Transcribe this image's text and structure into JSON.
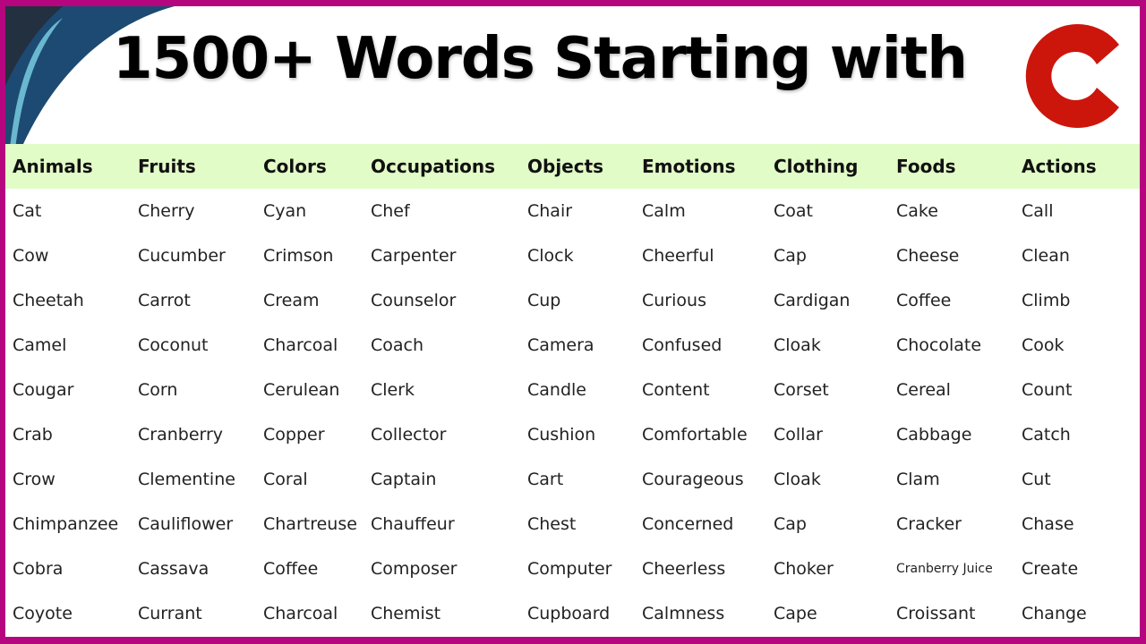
{
  "title": "1500+ Words Starting with",
  "letter": "C",
  "colors": {
    "border": "#b5067f",
    "header_bg": "#e2fcc7",
    "letter": "#cc160c"
  },
  "columns": [
    {
      "header": "Animals",
      "words": [
        "Cat",
        "Cow",
        "Cheetah",
        "Camel",
        "Cougar",
        "Crab",
        "Crow",
        "Chimpanzee",
        "Cobra",
        "Coyote"
      ]
    },
    {
      "header": "Fruits",
      "words": [
        "Cherry",
        "Cucumber",
        "Carrot",
        "Coconut",
        "Corn",
        "Cranberry",
        "Clementine",
        "Cauliflower",
        "Cassava",
        "Currant"
      ]
    },
    {
      "header": "Colors",
      "words": [
        "Cyan",
        "Crimson",
        "Cream",
        "Charcoal",
        "Cerulean",
        "Copper",
        "Coral",
        "Chartreuse",
        "Coffee",
        "Charcoal"
      ]
    },
    {
      "header": "Occupations",
      "words": [
        "Chef",
        "Carpenter",
        "Counselor",
        "Coach",
        "Clerk",
        "Collector",
        "Captain",
        "Chauffeur",
        "Composer",
        "Chemist"
      ]
    },
    {
      "header": "Objects",
      "words": [
        "Chair",
        "Clock",
        "Cup",
        "Camera",
        "Candle",
        "Cushion",
        "Cart",
        "Chest",
        "Computer",
        "Cupboard"
      ]
    },
    {
      "header": "Emotions",
      "words": [
        "Calm",
        "Cheerful",
        "Curious",
        "Confused",
        "Content",
        "Comfortable",
        "Courageous",
        "Concerned",
        "Cheerless",
        "Calmness"
      ]
    },
    {
      "header": "Clothing",
      "words": [
        "Coat",
        "Cap",
        "Cardigan",
        "Cloak",
        "Corset",
        "Collar",
        "Cloak",
        "Cap",
        "Choker",
        "Cape"
      ]
    },
    {
      "header": "Foods",
      "words": [
        "Cake",
        "Cheese",
        "Coffee",
        "Chocolate",
        "Cereal",
        "Cabbage",
        "Clam",
        "Cracker",
        "Cranberry Juice",
        "Croissant"
      ]
    },
    {
      "header": "Actions",
      "words": [
        "Call",
        "Clean",
        "Climb",
        "Cook",
        "Count",
        "Catch",
        "Cut",
        "Chase",
        "Create",
        "Change"
      ]
    }
  ]
}
